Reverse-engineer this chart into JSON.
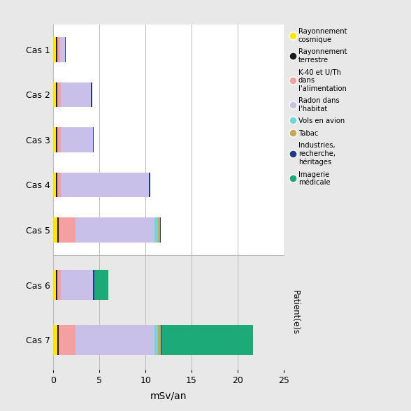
{
  "categories": [
    "Cas 1",
    "Cas 2",
    "Cas 3",
    "Cas 4",
    "Cas 5",
    "Cas 6",
    "Cas 7"
  ],
  "components": [
    "Rayonnement\ncosmique",
    "Rayonnement\nterrestre",
    "K-40 et U/Th\ndans\nl'alimentation",
    "Radon dans\nl'habitat",
    "Vols en avion",
    "Tabac",
    "Industries,\nrecherche,\nhéritages",
    "Imagerie\nmédicale"
  ],
  "colors": [
    "#FFE600",
    "#1A1A1A",
    "#F4A0A0",
    "#C8C0E8",
    "#70D8D8",
    "#C8A850",
    "#1E3A8A",
    "#1BAA78"
  ],
  "values": [
    [
      0.3,
      0.3,
      0.3,
      0.3,
      0.4,
      0.3,
      0.4
    ],
    [
      0.12,
      0.12,
      0.12,
      0.12,
      0.2,
      0.12,
      0.2
    ],
    [
      0.28,
      0.38,
      0.38,
      0.38,
      1.8,
      0.38,
      1.8
    ],
    [
      0.55,
      3.3,
      3.5,
      9.6,
      8.6,
      3.5,
      8.6
    ],
    [
      0.0,
      0.0,
      0.0,
      0.0,
      0.32,
      0.0,
      0.35
    ],
    [
      0.0,
      0.0,
      0.0,
      0.0,
      0.28,
      0.0,
      0.28
    ],
    [
      0.1,
      0.1,
      0.08,
      0.1,
      0.07,
      0.17,
      0.14
    ],
    [
      0.0,
      0.0,
      0.0,
      0.0,
      0.0,
      1.5,
      9.9
    ]
  ],
  "xlabel": "mSv/an",
  "xlim": [
    0,
    25
  ],
  "xticks": [
    0,
    5,
    10,
    15,
    20,
    25
  ],
  "upper_bg": "#FFFFFF",
  "lower_bg": "#E8E8E8",
  "fig_bg": "#E8E8E8",
  "upper_cases": [
    0,
    1,
    2,
    3,
    4
  ],
  "lower_cases": [
    5,
    6
  ],
  "ylabel_rotated": "Patient(e)s",
  "bar_height": 0.55,
  "grid_color": "#BBBBBB"
}
